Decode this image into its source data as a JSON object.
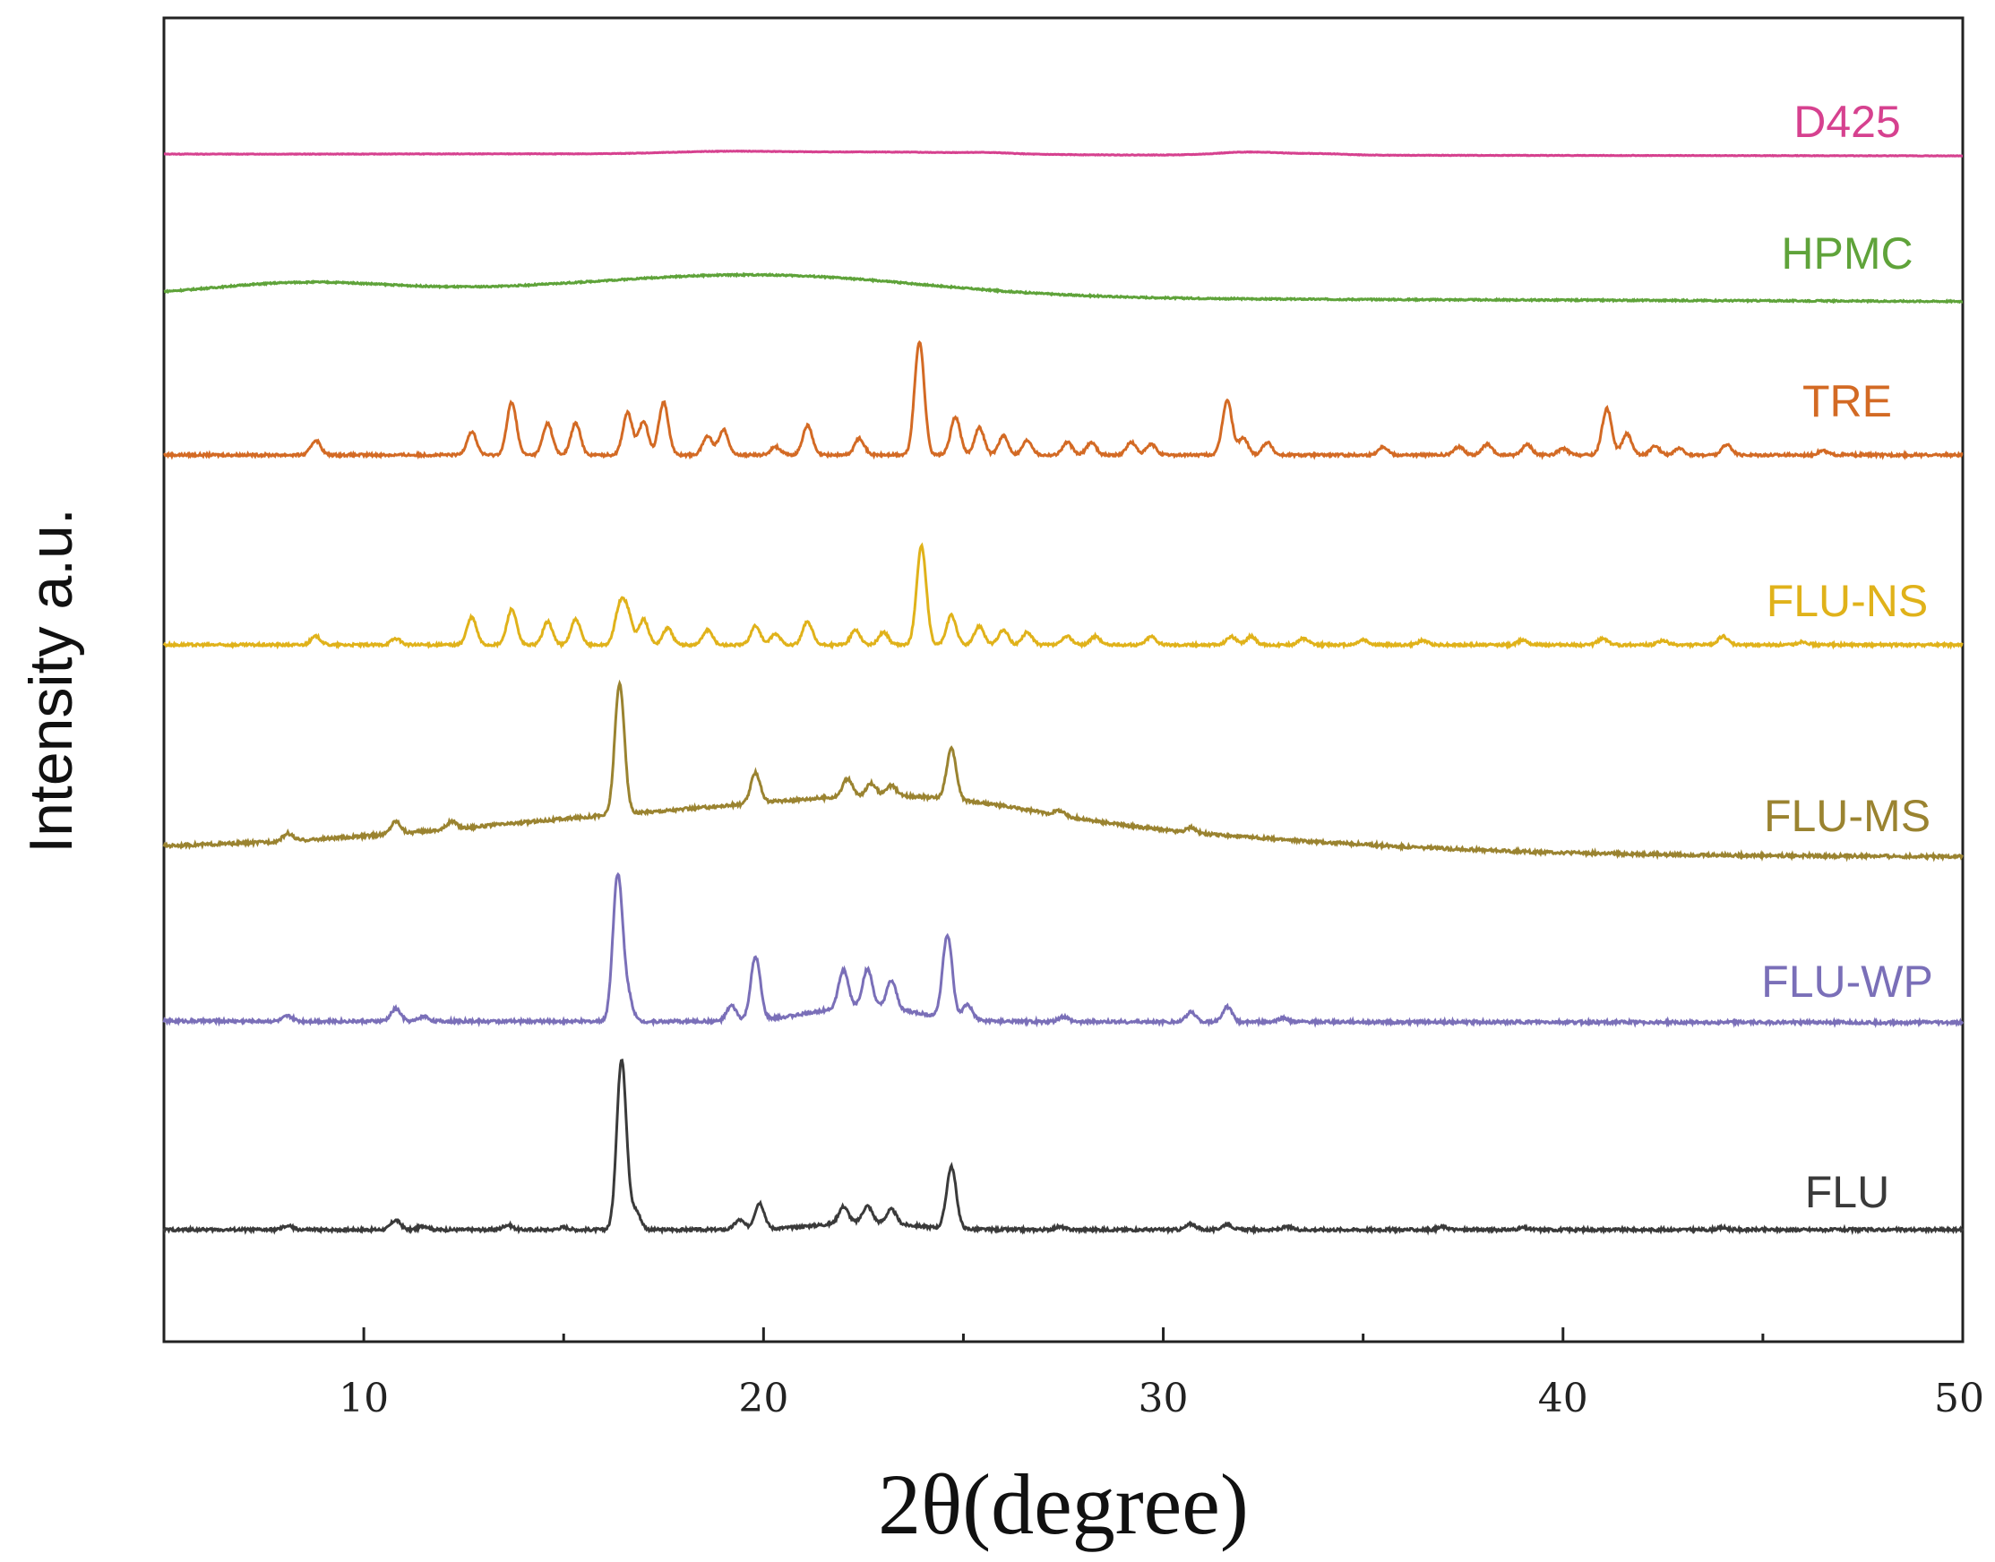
{
  "chart_data": {
    "type": "line",
    "title": "",
    "xlabel": "2θ(degree)",
    "ylabel": "Intensity a.u.",
    "xlim": [
      5,
      50
    ],
    "xticks": [
      10,
      20,
      30,
      40,
      50
    ],
    "grid": false,
    "legend": "labels placed at right end of each curve",
    "series": [
      {
        "name": "D425",
        "color": "#d6418f",
        "baseline": 0.0,
        "broad": [
          [
            19,
            0.3,
            1.5
          ],
          [
            23,
            0.3,
            2.2
          ],
          [
            32.2,
            0.35,
            0.8
          ],
          [
            34,
            0.15,
            0.6
          ],
          [
            25.6,
            0.12,
            0.6
          ],
          [
            14,
            0.06,
            3
          ]
        ],
        "slope": -0.2,
        "peaks": []
      },
      {
        "name": "HPMC",
        "color": "#5fa33a",
        "baseline": 0.0,
        "broad": [
          [
            8.5,
            0.55,
            2.3
          ],
          [
            20,
            0.95,
            4.0
          ],
          [
            14,
            0.15,
            3.0
          ]
        ],
        "slope": -0.25,
        "peaks": []
      },
      {
        "name": "TRE",
        "color": "#d36a24",
        "baseline": 0.0,
        "broad": [],
        "slope": 0,
        "peaks": [
          [
            8.8,
            0.35
          ],
          [
            12.7,
            0.55
          ],
          [
            13.7,
            1.25
          ],
          [
            14.6,
            0.75
          ],
          [
            15.3,
            0.75
          ],
          [
            16.6,
            1.0
          ],
          [
            17.0,
            0.8
          ],
          [
            17.5,
            1.25
          ],
          [
            18.6,
            0.45
          ],
          [
            19.0,
            0.6
          ],
          [
            20.3,
            0.2
          ],
          [
            21.1,
            0.7
          ],
          [
            22.4,
            0.4
          ],
          [
            23.9,
            2.7
          ],
          [
            24.8,
            0.9
          ],
          [
            25.4,
            0.65
          ],
          [
            26.0,
            0.45
          ],
          [
            26.6,
            0.35
          ],
          [
            27.6,
            0.3
          ],
          [
            28.2,
            0.3
          ],
          [
            29.2,
            0.3
          ],
          [
            29.7,
            0.25
          ],
          [
            31.6,
            1.3
          ],
          [
            32.0,
            0.4
          ],
          [
            32.6,
            0.3
          ],
          [
            35.5,
            0.2
          ],
          [
            37.4,
            0.2
          ],
          [
            38.1,
            0.25
          ],
          [
            39.1,
            0.25
          ],
          [
            40.0,
            0.15
          ],
          [
            41.1,
            1.1
          ],
          [
            41.6,
            0.5
          ],
          [
            42.3,
            0.2
          ],
          [
            42.9,
            0.15
          ],
          [
            44.1,
            0.25
          ],
          [
            46.5,
            0.1
          ]
        ]
      },
      {
        "name": "FLU-NS",
        "color": "#e0b21a",
        "baseline": 0.0,
        "broad": [],
        "slope": 0,
        "peaks": [
          [
            8.8,
            0.2
          ],
          [
            10.8,
            0.15
          ],
          [
            12.7,
            0.65
          ],
          [
            13.7,
            0.85
          ],
          [
            14.6,
            0.55
          ],
          [
            15.3,
            0.6
          ],
          [
            16.4,
            0.85
          ],
          [
            16.6,
            0.7
          ],
          [
            17.0,
            0.6
          ],
          [
            17.6,
            0.4
          ],
          [
            18.6,
            0.35
          ],
          [
            19.8,
            0.45
          ],
          [
            20.3,
            0.25
          ],
          [
            21.1,
            0.55
          ],
          [
            22.3,
            0.35
          ],
          [
            23.0,
            0.3
          ],
          [
            23.95,
            2.35
          ],
          [
            24.7,
            0.7
          ],
          [
            25.4,
            0.45
          ],
          [
            26.0,
            0.35
          ],
          [
            26.6,
            0.3
          ],
          [
            27.6,
            0.2
          ],
          [
            28.3,
            0.2
          ],
          [
            29.7,
            0.2
          ],
          [
            31.7,
            0.2
          ],
          [
            32.2,
            0.2
          ],
          [
            33.5,
            0.15
          ],
          [
            35.0,
            0.12
          ],
          [
            36.5,
            0.1
          ],
          [
            39.0,
            0.12
          ],
          [
            41.0,
            0.15
          ],
          [
            42.5,
            0.1
          ],
          [
            44.0,
            0.2
          ],
          [
            46.0,
            0.08
          ]
        ]
      },
      {
        "name": "FLU-MS",
        "color": "#9a8330",
        "baseline": 0.0,
        "broad": [
          [
            19.5,
            0.8,
            6.5
          ],
          [
            24,
            0.4,
            3.0
          ],
          [
            31,
            0.2,
            5
          ]
        ],
        "slope": -0.15,
        "peaks": [
          [
            8.1,
            0.15
          ],
          [
            10.8,
            0.25
          ],
          [
            12.2,
            0.15
          ],
          [
            16.4,
            2.6
          ],
          [
            19.8,
            0.6
          ],
          [
            22.1,
            0.35
          ],
          [
            22.7,
            0.25
          ],
          [
            23.2,
            0.2
          ],
          [
            24.7,
            1.0
          ],
          [
            27.4,
            0.1
          ],
          [
            30.7,
            0.1
          ]
        ]
      },
      {
        "name": "FLU-WP",
        "color": "#7a6fb8",
        "baseline": 0.0,
        "broad": [
          [
            22.5,
            0.3,
            1.3
          ]
        ],
        "slope": -0.03,
        "peaks": [
          [
            8.1,
            0.1
          ],
          [
            10.8,
            0.25
          ],
          [
            11.5,
            0.1
          ],
          [
            16.35,
            2.9
          ],
          [
            16.6,
            0.5
          ],
          [
            19.2,
            0.3
          ],
          [
            19.8,
            1.25
          ],
          [
            22.0,
            0.75
          ],
          [
            22.6,
            0.75
          ],
          [
            23.2,
            0.55
          ],
          [
            24.6,
            1.65
          ],
          [
            25.1,
            0.3
          ],
          [
            27.5,
            0.1
          ],
          [
            30.7,
            0.2
          ],
          [
            31.6,
            0.3
          ],
          [
            33.0,
            0.08
          ]
        ]
      },
      {
        "name": "FLU",
        "color": "#3a3a3a",
        "baseline": 0.0,
        "broad": [
          [
            22.5,
            0.15,
            1.2
          ]
        ],
        "slope": 0,
        "peaks": [
          [
            8.1,
            0.08
          ],
          [
            10.8,
            0.2
          ],
          [
            11.5,
            0.08
          ],
          [
            13.6,
            0.1
          ],
          [
            15.0,
            0.05
          ],
          [
            16.45,
            3.6
          ],
          [
            16.8,
            0.4
          ],
          [
            19.4,
            0.2
          ],
          [
            19.9,
            0.55
          ],
          [
            22.0,
            0.35
          ],
          [
            22.6,
            0.35
          ],
          [
            23.2,
            0.3
          ],
          [
            24.7,
            1.3
          ],
          [
            27.4,
            0.06
          ],
          [
            30.7,
            0.12
          ],
          [
            31.6,
            0.12
          ],
          [
            33.1,
            0.06
          ],
          [
            37.0,
            0.06
          ],
          [
            39.0,
            0.04
          ],
          [
            44.0,
            0.04
          ]
        ]
      }
    ]
  }
}
